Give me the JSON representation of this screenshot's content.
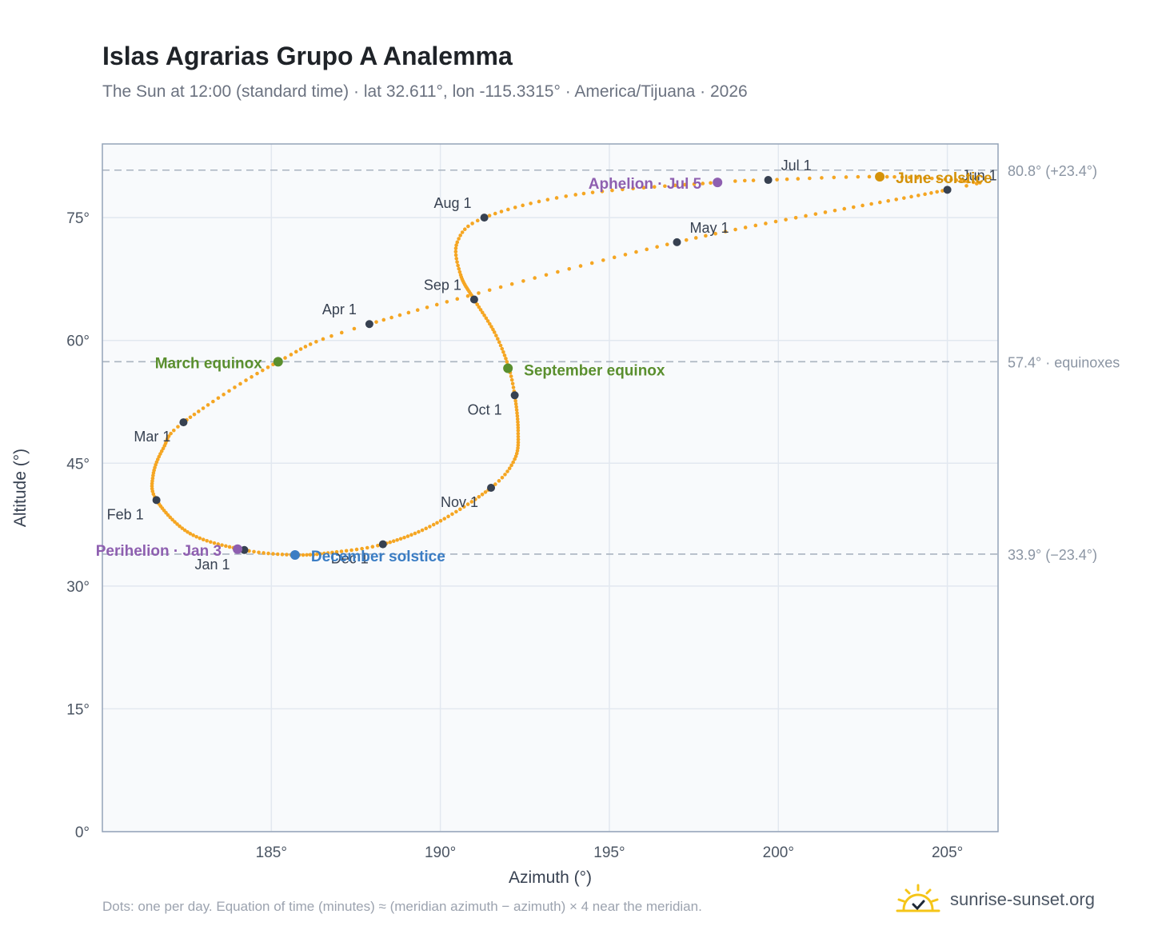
{
  "header": {
    "title": "Islas Agrarias Grupo A Analemma",
    "subtitle": "The Sun at 12:00 (standard time) · lat 32.611°, lon -115.3315° · America/Tijuana · 2026"
  },
  "footer": {
    "note": "Dots: one per day. Equation of time (minutes) ≈ (meridian azimuth − azimuth) × 4 near the meridian.",
    "brand": "sunrise-sunset.org"
  },
  "colors": {
    "curve": "#f5a623",
    "month_marker": "#374151",
    "equinox": "#5a8f2e",
    "june_solstice": "#d4920a",
    "december_solstice": "#3b7dc4",
    "aphelion_perihelion": "#8e5fb0",
    "reference_line": "#aab4c0",
    "plot_bg": "#f8fafc",
    "grid": "#e2e8f0",
    "axis_frame": "#94a3b8",
    "brand_icon": "#f5c518"
  },
  "chart_data": {
    "type": "scatter",
    "xlabel": "Azimuth (°)",
    "ylabel": "Altitude (°)",
    "xlim": [
      180,
      206.5
    ],
    "ylim": [
      0,
      84
    ],
    "xticks": [
      {
        "value": 185,
        "label": "185°"
      },
      {
        "value": 190,
        "label": "190°"
      },
      {
        "value": 195,
        "label": "195°"
      },
      {
        "value": 200,
        "label": "200°"
      },
      {
        "value": 205,
        "label": "205°"
      }
    ],
    "yticks": [
      {
        "value": 0,
        "label": "0°"
      },
      {
        "value": 15,
        "label": "15°"
      },
      {
        "value": 30,
        "label": "30°"
      },
      {
        "value": 45,
        "label": "45°"
      },
      {
        "value": 60,
        "label": "60°"
      },
      {
        "value": 75,
        "label": "75°"
      }
    ],
    "grid": true,
    "reference_lines": [
      {
        "y": 80.8,
        "label": "80.8° (+23.4°)"
      },
      {
        "y": 57.4,
        "label": "57.4° · equinoxes"
      },
      {
        "y": 33.9,
        "label": "33.9° (−23.4°)"
      }
    ],
    "daily_path": [
      {
        "day": 0,
        "az": 184.2,
        "alt": 34.4
      },
      {
        "day": 15,
        "az": 182.6,
        "alt": 36.4
      },
      {
        "day": 31,
        "az": 181.6,
        "alt": 40.5
      },
      {
        "day": 40,
        "az": 181.5,
        "alt": 43.5
      },
      {
        "day": 50,
        "az": 181.8,
        "alt": 46.8
      },
      {
        "day": 59,
        "az": 182.4,
        "alt": 50.0
      },
      {
        "day": 78,
        "az": 185.2,
        "alt": 57.4
      },
      {
        "day": 90,
        "az": 187.9,
        "alt": 62.0
      },
      {
        "day": 120,
        "az": 197.0,
        "alt": 72.0
      },
      {
        "day": 151,
        "az": 205.0,
        "alt": 78.4
      },
      {
        "day": 157,
        "az": 205.6,
        "alt": 79.4
      },
      {
        "day": 171,
        "az": 203.0,
        "alt": 80.0
      },
      {
        "day": 181,
        "az": 199.7,
        "alt": 79.6
      },
      {
        "day": 185,
        "az": 198.2,
        "alt": 79.3
      },
      {
        "day": 200,
        "az": 194.0,
        "alt": 77.8
      },
      {
        "day": 212,
        "az": 191.3,
        "alt": 75.0
      },
      {
        "day": 220,
        "az": 190.5,
        "alt": 72.0
      },
      {
        "day": 230,
        "az": 190.6,
        "alt": 68.0
      },
      {
        "day": 243,
        "az": 191.0,
        "alt": 65.0
      },
      {
        "day": 255,
        "az": 191.6,
        "alt": 61.0
      },
      {
        "day": 265,
        "az": 192.0,
        "alt": 57.0
      },
      {
        "day": 273,
        "az": 192.2,
        "alt": 53.3
      },
      {
        "day": 285,
        "az": 192.3,
        "alt": 49.0
      },
      {
        "day": 295,
        "az": 192.2,
        "alt": 45.5
      },
      {
        "day": 304,
        "az": 191.5,
        "alt": 42.0
      },
      {
        "day": 320,
        "az": 189.8,
        "alt": 37.5
      },
      {
        "day": 334,
        "az": 188.3,
        "alt": 35.1
      },
      {
        "day": 344,
        "az": 186.8,
        "alt": 34.1
      },
      {
        "day": 354,
        "az": 185.7,
        "alt": 33.8
      },
      {
        "day": 365,
        "az": 184.2,
        "alt": 34.4
      }
    ],
    "month_markers": [
      {
        "label": "Jan 1",
        "az": 184.2,
        "alt": 34.4,
        "anchor": "end",
        "dx": -18,
        "dy": 24
      },
      {
        "label": "Feb 1",
        "az": 181.6,
        "alt": 40.5,
        "anchor": "end",
        "dx": -16,
        "dy": 24
      },
      {
        "label": "Mar 1",
        "az": 182.4,
        "alt": 50.0,
        "anchor": "end",
        "dx": -16,
        "dy": 24
      },
      {
        "label": "Apr 1",
        "az": 187.9,
        "alt": 62.0,
        "anchor": "end",
        "dx": -16,
        "dy": -12
      },
      {
        "label": "May 1",
        "az": 197.0,
        "alt": 72.0,
        "anchor": "start",
        "dx": 16,
        "dy": -12
      },
      {
        "label": "Jun 1",
        "az": 205.0,
        "alt": 78.4,
        "anchor": "start",
        "dx": 18,
        "dy": -12
      },
      {
        "label": "Jul 1",
        "az": 199.7,
        "alt": 79.6,
        "anchor": "start",
        "dx": 16,
        "dy": -12
      },
      {
        "label": "Aug 1",
        "az": 191.3,
        "alt": 75.0,
        "anchor": "end",
        "dx": -16,
        "dy": -12
      },
      {
        "label": "Sep 1",
        "az": 191.0,
        "alt": 65.0,
        "anchor": "end",
        "dx": -16,
        "dy": -12
      },
      {
        "label": "Oct 1",
        "az": 192.2,
        "alt": 53.3,
        "anchor": "end",
        "dx": -16,
        "dy": 24
      },
      {
        "label": "Nov 1",
        "az": 191.5,
        "alt": 42.0,
        "anchor": "end",
        "dx": -16,
        "dy": 24
      },
      {
        "label": "Dec 1",
        "az": 188.3,
        "alt": 35.1,
        "anchor": "end",
        "dx": -18,
        "dy": 24
      }
    ],
    "events": [
      {
        "label": "March equinox",
        "az": 185.2,
        "alt": 57.4,
        "color_key": "equinox",
        "anchor": "end",
        "dx": -20,
        "dy": 8
      },
      {
        "label": "September equinox",
        "az": 192.0,
        "alt": 56.6,
        "color_key": "equinox",
        "anchor": "start",
        "dx": 20,
        "dy": 9
      },
      {
        "label": "June solstice",
        "az": 203.0,
        "alt": 80.0,
        "color_key": "june_solstice",
        "anchor": "start",
        "dx": 20,
        "dy": 8
      },
      {
        "label": "December solstice",
        "az": 185.7,
        "alt": 33.8,
        "color_key": "december_solstice",
        "anchor": "start",
        "dx": 20,
        "dy": 8
      },
      {
        "label": "Aphelion · Jul 5",
        "az": 198.2,
        "alt": 79.3,
        "color_key": "aphelion_perihelion",
        "anchor": "end",
        "dx": -20,
        "dy": 8
      },
      {
        "label": "Perihelion · Jan 3",
        "az": 184.0,
        "alt": 34.5,
        "color_key": "aphelion_perihelion",
        "anchor": "end",
        "dx": -20,
        "dy": 8
      }
    ]
  }
}
